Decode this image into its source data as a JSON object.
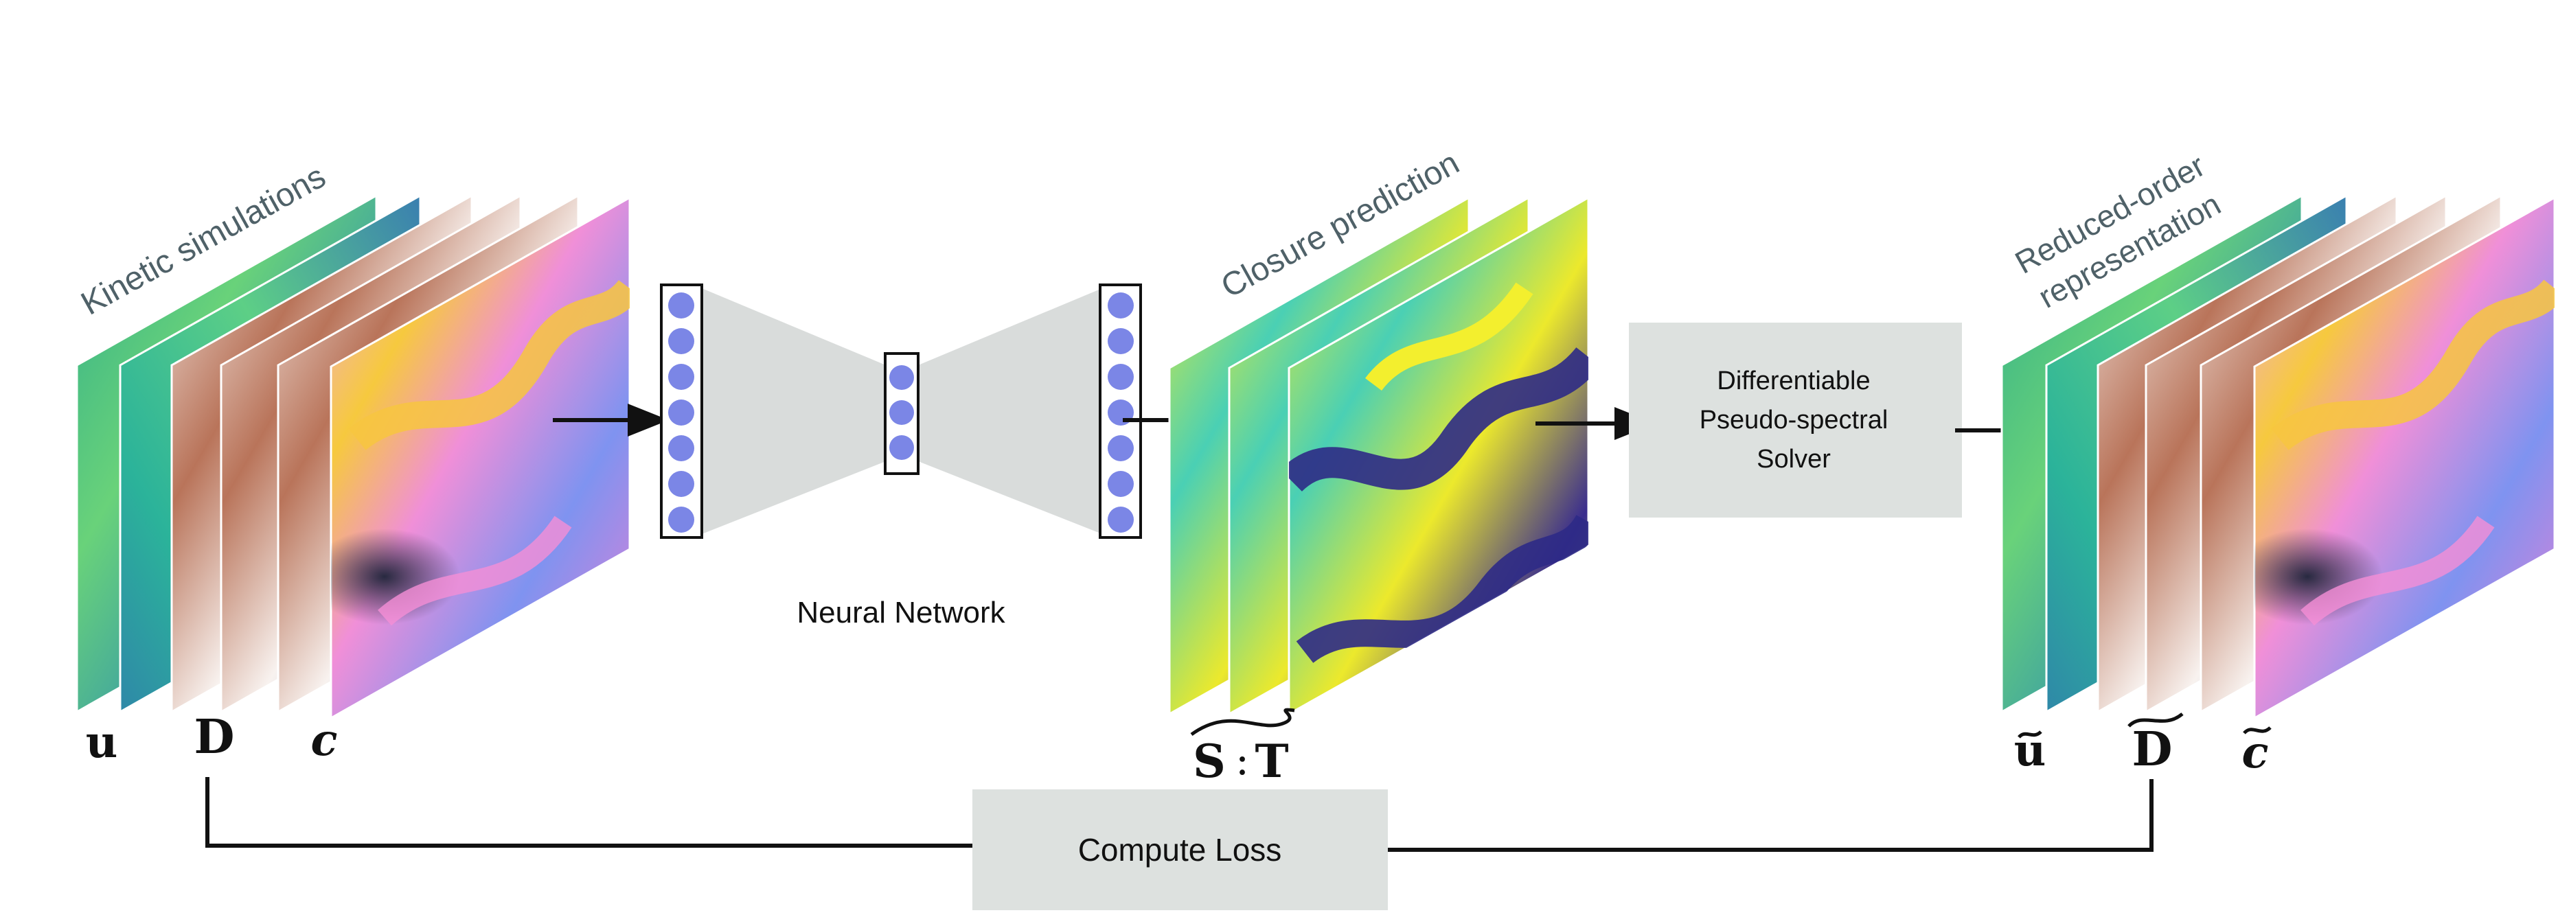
{
  "labels": {
    "kinetic_simulations": "Kinetic simulations",
    "neural_network": "Neural Network",
    "closure_prediction": "Closure prediction",
    "solver_line1": "Differentiable",
    "solver_line2": "Pseudo-spectral",
    "solver_line3": "Solver",
    "reduced_line1": "Reduced-order",
    "reduced_line2": "representation",
    "compute_loss": "Compute Loss"
  },
  "symbols": {
    "u": "u",
    "D": "D",
    "c": "c",
    "S": "S",
    "colon": ":",
    "T": "T",
    "u_tilde": "u",
    "D_tilde": "D",
    "c_tilde": "c"
  },
  "network": {
    "input_nodes": 7,
    "bottleneck_nodes": 3,
    "output_nodes": 7
  },
  "colors": {
    "label_gray": "#4f6168",
    "box_fill": "#dde1df",
    "funnel_fill": "#d9dcdb",
    "node_fill": "#7b86e6",
    "line": "#111111"
  }
}
